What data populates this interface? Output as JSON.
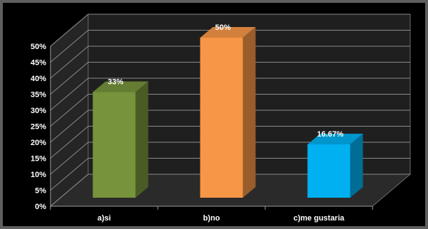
{
  "chart_data": {
    "type": "bar",
    "title": "",
    "xlabel": "",
    "ylabel": "",
    "categories": [
      "a)si",
      "b)no",
      "c)me gustaria"
    ],
    "values": [
      33,
      50,
      16.67
    ],
    "data_labels": [
      "33%",
      "50%",
      "16.67%"
    ],
    "y_ticks": [
      "0%",
      "5%",
      "10%",
      "15%",
      "20%",
      "25%",
      "30%",
      "35%",
      "40%",
      "45%",
      "50%"
    ],
    "ylim": [
      0,
      50
    ],
    "grid": true,
    "legend": "none",
    "style": "3d-columns",
    "colors": {
      "bars": [
        "#77933c",
        "#f79646",
        "#00b0f0"
      ],
      "background": "#000000",
      "wall": "#1f1f1f",
      "grid": "#8a8a8a",
      "text": "#ffffff"
    }
  }
}
